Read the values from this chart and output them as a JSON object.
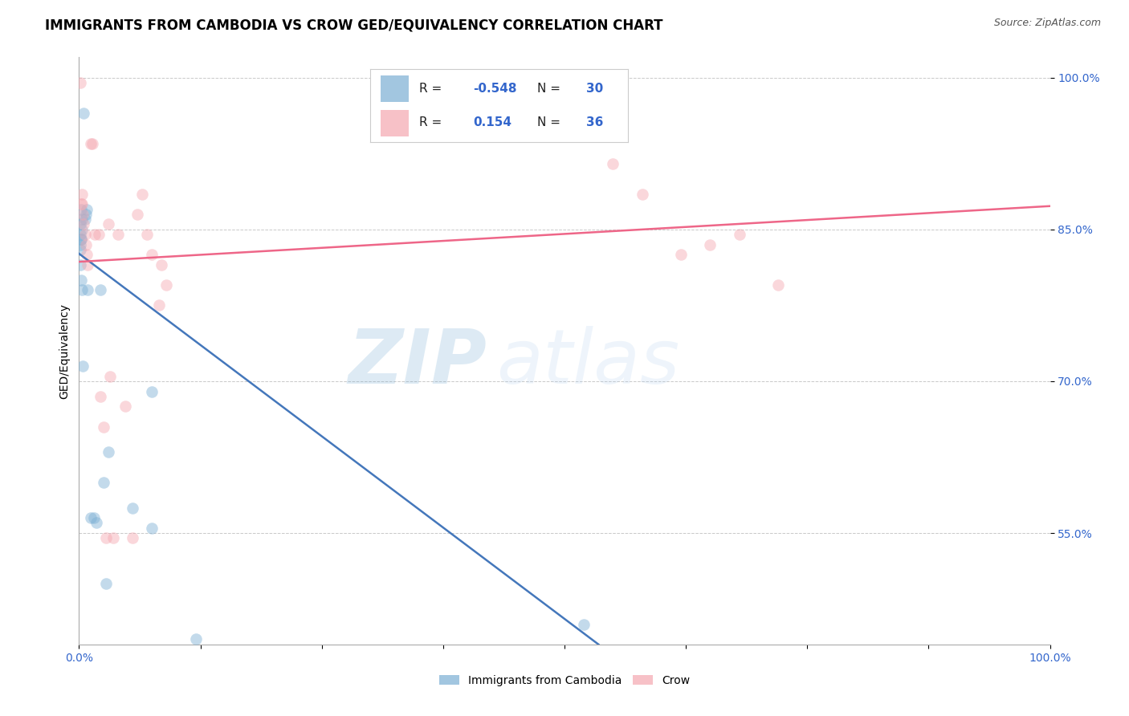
{
  "title": "IMMIGRANTS FROM CAMBODIA VS CROW GED/EQUIVALENCY CORRELATION CHART",
  "source": "Source: ZipAtlas.com",
  "ylabel": "GED/Equivalency",
  "legend_label1": "Immigrants from Cambodia",
  "legend_label2": "Crow",
  "legend_R1": "-0.548",
  "legend_N1": "30",
  "legend_R2": "0.154",
  "legend_N2": "36",
  "blue_color": "#7BAFD4",
  "pink_color": "#F4A7B0",
  "blue_line_color": "#4477BB",
  "pink_line_color": "#EE6688",
  "xlim": [
    0.0,
    1.0
  ],
  "ylim": [
    0.44,
    1.02
  ],
  "ytick_vals": [
    0.55,
    0.7,
    0.85,
    1.0
  ],
  "ytick_labels": [
    "55.0%",
    "70.0%",
    "85.0%",
    "100.0%"
  ],
  "blue_scatter_x": [
    0.003,
    0.005,
    0.002,
    0.001,
    0.001,
    0.002,
    0.003,
    0.002,
    0.001,
    0.001,
    0.001,
    0.002,
    0.003,
    0.004,
    0.006,
    0.007,
    0.008,
    0.009,
    0.012,
    0.015,
    0.018,
    0.022,
    0.025,
    0.028,
    0.03,
    0.055,
    0.12,
    0.52,
    0.075,
    0.075
  ],
  "blue_scatter_y": [
    0.86,
    0.965,
    0.87,
    0.855,
    0.845,
    0.84,
    0.85,
    0.84,
    0.835,
    0.83,
    0.815,
    0.8,
    0.79,
    0.715,
    0.86,
    0.865,
    0.87,
    0.79,
    0.565,
    0.565,
    0.56,
    0.79,
    0.6,
    0.5,
    0.63,
    0.575,
    0.445,
    0.46,
    0.69,
    0.555
  ],
  "pink_scatter_x": [
    0.001,
    0.003,
    0.003,
    0.004,
    0.006,
    0.007,
    0.008,
    0.009,
    0.012,
    0.014,
    0.016,
    0.025,
    0.028,
    0.03,
    0.04,
    0.048,
    0.06,
    0.065,
    0.07,
    0.075,
    0.085,
    0.09,
    0.55,
    0.58,
    0.62,
    0.65,
    0.68,
    0.72,
    0.002,
    0.005,
    0.02,
    0.022,
    0.032,
    0.035,
    0.055,
    0.082
  ],
  "pink_scatter_y": [
    0.995,
    0.875,
    0.885,
    0.865,
    0.845,
    0.835,
    0.825,
    0.815,
    0.935,
    0.935,
    0.845,
    0.655,
    0.545,
    0.855,
    0.845,
    0.675,
    0.865,
    0.885,
    0.845,
    0.825,
    0.815,
    0.795,
    0.915,
    0.885,
    0.825,
    0.835,
    0.845,
    0.795,
    0.875,
    0.855,
    0.845,
    0.685,
    0.705,
    0.545,
    0.545,
    0.775
  ],
  "blue_line_x0": 0.0,
  "blue_line_x1": 0.535,
  "blue_line_y0": 0.826,
  "blue_line_y1": 0.44,
  "pink_line_x0": 0.0,
  "pink_line_x1": 1.0,
  "pink_line_y0": 0.818,
  "pink_line_y1": 0.873,
  "background_color": "#FFFFFF",
  "grid_color": "#BBBBBB",
  "watermark_text1": "ZIP",
  "watermark_text2": "atlas",
  "marker_size": 110,
  "marker_alpha": 0.45,
  "title_fontsize": 12,
  "source_fontsize": 9,
  "axis_label_fontsize": 10,
  "tick_fontsize": 10,
  "legend_fontsize": 12
}
